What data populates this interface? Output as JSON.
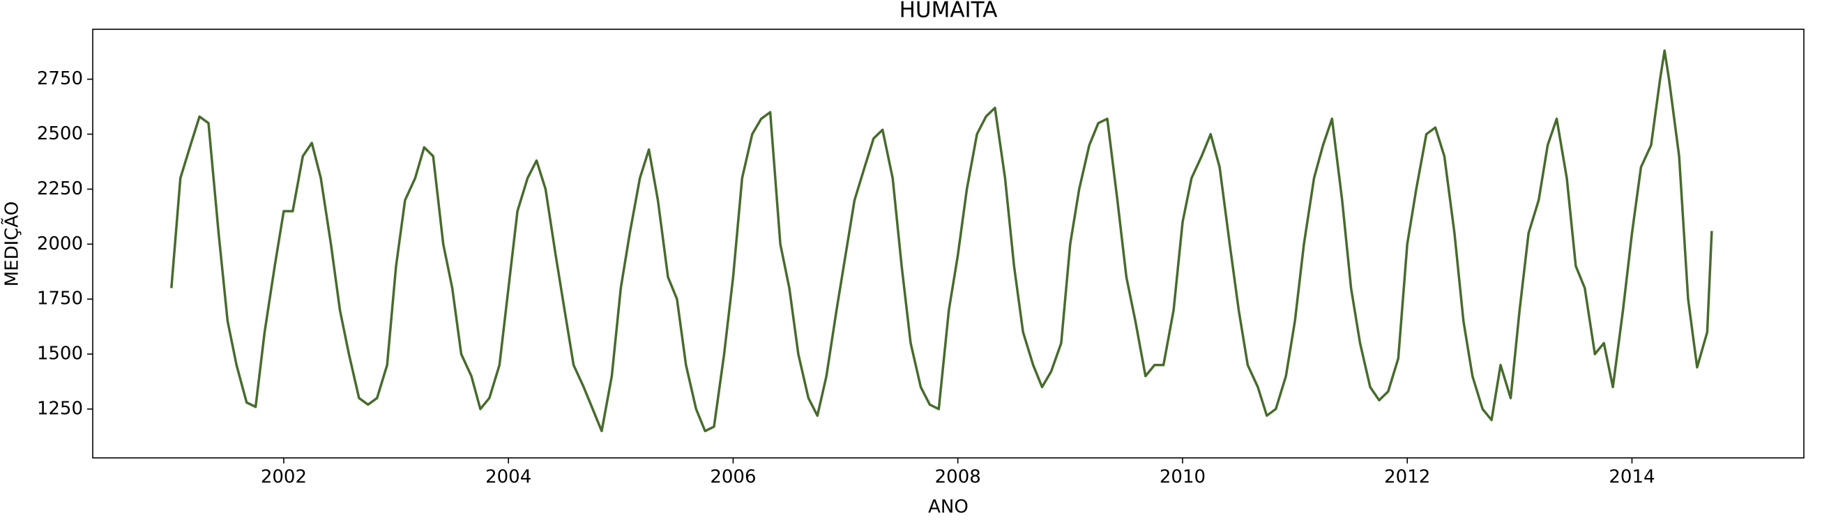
{
  "chart_data": {
    "type": "line",
    "title": "HUMAITA",
    "x_label": "ANO",
    "y_label": "MEDIÇÃO",
    "color": "#476b2d",
    "x": [
      2001.0,
      2001.08,
      2001.17,
      2001.25,
      2001.33,
      2001.42,
      2001.5,
      2001.58,
      2001.67,
      2001.75,
      2001.83,
      2001.92,
      2002.0,
      2002.08,
      2002.17,
      2002.25,
      2002.33,
      2002.42,
      2002.5,
      2002.58,
      2002.67,
      2002.75,
      2002.83,
      2002.92,
      2003.0,
      2003.08,
      2003.17,
      2003.25,
      2003.33,
      2003.42,
      2003.5,
      2003.58,
      2003.67,
      2003.75,
      2003.83,
      2003.92,
      2004.0,
      2004.08,
      2004.17,
      2004.25,
      2004.33,
      2004.42,
      2004.5,
      2004.58,
      2004.67,
      2004.75,
      2004.83,
      2004.92,
      2005.0,
      2005.08,
      2005.17,
      2005.25,
      2005.33,
      2005.42,
      2005.5,
      2005.58,
      2005.67,
      2005.75,
      2005.83,
      2005.92,
      2006.0,
      2006.08,
      2006.17,
      2006.25,
      2006.33,
      2006.42,
      2006.5,
      2006.58,
      2006.67,
      2006.75,
      2006.83,
      2006.92,
      2007.0,
      2007.08,
      2007.17,
      2007.25,
      2007.33,
      2007.42,
      2007.5,
      2007.58,
      2007.67,
      2007.75,
      2007.83,
      2007.92,
      2008.0,
      2008.08,
      2008.17,
      2008.25,
      2008.33,
      2008.42,
      2008.5,
      2008.58,
      2008.67,
      2008.75,
      2008.83,
      2008.92,
      2009.0,
      2009.08,
      2009.17,
      2009.25,
      2009.33,
      2009.42,
      2009.5,
      2009.58,
      2009.67,
      2009.75,
      2009.83,
      2009.92,
      2010.0,
      2010.08,
      2010.17,
      2010.25,
      2010.33,
      2010.42,
      2010.5,
      2010.58,
      2010.67,
      2010.75,
      2010.83,
      2010.92,
      2011.0,
      2011.08,
      2011.17,
      2011.25,
      2011.33,
      2011.42,
      2011.5,
      2011.58,
      2011.67,
      2011.75,
      2011.83,
      2011.92,
      2012.0,
      2012.08,
      2012.17,
      2012.25,
      2012.33,
      2012.42,
      2012.5,
      2012.58,
      2012.67,
      2012.75,
      2012.83,
      2012.92,
      2013.0,
      2013.08,
      2013.17,
      2013.25,
      2013.33,
      2013.42,
      2013.5,
      2013.58,
      2013.67,
      2013.75,
      2013.83,
      2013.92,
      2014.0,
      2014.08,
      2014.17,
      2014.25,
      2014.29,
      2014.33,
      2014.42,
      2014.5,
      2014.58,
      2014.67,
      2014.71
    ],
    "values": [
      1800,
      2300,
      2450,
      2580,
      2550,
      2050,
      1650,
      1450,
      1280,
      1260,
      1600,
      1900,
      2150,
      2150,
      2400,
      2460,
      2300,
      2000,
      1700,
      1500,
      1300,
      1270,
      1300,
      1450,
      1900,
      2200,
      2300,
      2440,
      2400,
      2000,
      1800,
      1500,
      1400,
      1250,
      1300,
      1450,
      1800,
      2150,
      2300,
      2380,
      2250,
      1950,
      1700,
      1450,
      1350,
      1250,
      1150,
      1400,
      1800,
      2050,
      2300,
      2430,
      2200,
      1850,
      1750,
      1450,
      1250,
      1150,
      1170,
      1500,
      1850,
      2300,
      2500,
      2570,
      2600,
      2000,
      1800,
      1500,
      1300,
      1220,
      1400,
      1700,
      1950,
      2200,
      2350,
      2480,
      2520,
      2300,
      1900,
      1550,
      1350,
      1270,
      1250,
      1700,
      1950,
      2250,
      2500,
      2580,
      2620,
      2300,
      1900,
      1600,
      1450,
      1350,
      1420,
      1550,
      2000,
      2250,
      2450,
      2550,
      2570,
      2200,
      1850,
      1650,
      1400,
      1450,
      1450,
      1700,
      2100,
      2300,
      2400,
      2500,
      2350,
      2000,
      1700,
      1450,
      1350,
      1220,
      1250,
      1400,
      1650,
      2000,
      2300,
      2450,
      2570,
      2200,
      1800,
      1550,
      1350,
      1290,
      1330,
      1480,
      2000,
      2250,
      2500,
      2530,
      2400,
      2050,
      1650,
      1400,
      1250,
      1200,
      1450,
      1300,
      1700,
      2050,
      2200,
      2450,
      2570,
      2300,
      1900,
      1800,
      1500,
      1550,
      1350,
      1700,
      2050,
      2350,
      2450,
      2750,
      2880,
      2750,
      2400,
      1750,
      1440,
      1600,
      2060
    ],
    "xlim": [
      2000.3,
      2015.53
    ],
    "ylim": [
      1028,
      2977
    ],
    "xticks": [
      2002,
      2004,
      2006,
      2008,
      2010,
      2012,
      2014
    ],
    "yticks": [
      1250,
      1500,
      1750,
      2000,
      2250,
      2500,
      2750
    ]
  }
}
